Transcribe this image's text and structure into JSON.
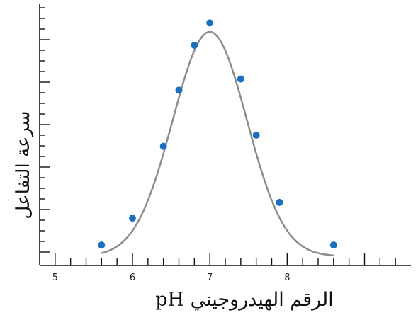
{
  "chart_data": {
    "type": "scatter",
    "xlabel": "الرقم الهيدروجيني pH",
    "ylabel": "سرعة التفاعل",
    "xlim": [
      4.8,
      9.6
    ],
    "ylim": [
      0,
      1
    ],
    "x_ticks": [
      "5",
      "6",
      "7",
      "8"
    ],
    "grid": false,
    "y_tick_labels_shown": false,
    "fit_curve": "gaussian",
    "colors": {
      "points": "#1a6fbf",
      "curve": "#8c8c8c",
      "axes": "#111111"
    },
    "series": [
      {
        "x": [
          5.6,
          6.0,
          6.4,
          6.6,
          6.8,
          7.0,
          7.4,
          7.6,
          7.9,
          8.6
        ],
        "y": [
          0.05,
          0.17,
          0.49,
          0.74,
          0.94,
          1.04,
          0.79,
          0.54,
          0.24,
          0.05
        ]
      }
    ]
  }
}
